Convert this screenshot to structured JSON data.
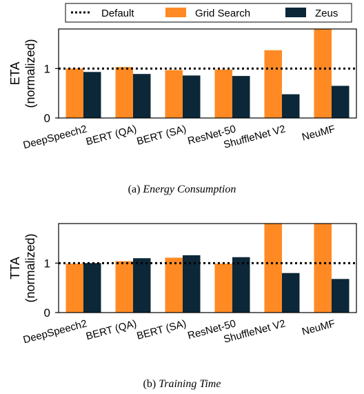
{
  "legend": {
    "items": [
      {
        "label": "Default",
        "style": "dotted-line",
        "color": "#000000"
      },
      {
        "label": "Grid Search",
        "style": "box",
        "color": "#ff8a24"
      },
      {
        "label": "Zeus",
        "style": "box",
        "color": "#0b2738"
      }
    ],
    "placement": "top"
  },
  "captions": [
    {
      "prefix": "(a) ",
      "text": "Energy Consumption"
    },
    {
      "prefix": "(b) ",
      "text": "Training Time"
    }
  ],
  "chart_data": [
    {
      "type": "bar",
      "categories": [
        "DeepSpeech2",
        "BERT (QA)",
        "BERT (SA)",
        "ResNet-50",
        "ShuffleNet V2",
        "NeuMF"
      ],
      "series": [
        {
          "name": "Grid Search",
          "color": "#ff8a24",
          "values": [
            1.0,
            1.03,
            0.97,
            0.98,
            1.37,
            1.8
          ]
        },
        {
          "name": "Zeus",
          "color": "#0b2738",
          "values": [
            0.93,
            0.89,
            0.86,
            0.85,
            0.48,
            0.65
          ]
        }
      ],
      "reference_line": {
        "name": "Default",
        "value": 1,
        "style": "dotted"
      },
      "ylabel_lines": [
        "ETA",
        "(normalized)"
      ],
      "yticks": [
        0,
        1
      ],
      "ylim": [
        0,
        1.8
      ],
      "grid": false
    },
    {
      "type": "bar",
      "categories": [
        "DeepSpeech2",
        "BERT (QA)",
        "BERT (SA)",
        "ResNet-50",
        "ShuffleNet V2",
        "NeuMF"
      ],
      "series": [
        {
          "name": "Grid Search",
          "color": "#ff8a24",
          "values": [
            0.99,
            1.04,
            1.11,
            0.99,
            1.8,
            1.8
          ]
        },
        {
          "name": "Zeus",
          "color": "#0b2738",
          "values": [
            1.0,
            1.1,
            1.16,
            1.12,
            0.8,
            0.68
          ]
        }
      ],
      "reference_line": {
        "name": "Default",
        "value": 1,
        "style": "dotted"
      },
      "ylabel_lines": [
        "TTA",
        "(normalized)"
      ],
      "yticks": [
        0,
        1
      ],
      "ylim": [
        0,
        1.8
      ],
      "grid": false
    }
  ]
}
